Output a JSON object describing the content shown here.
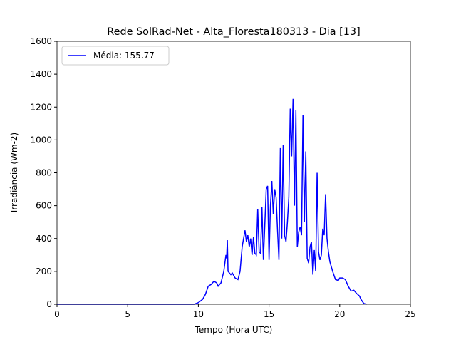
{
  "chart_data": {
    "type": "line",
    "title": "Rede SolRad-Net - Alta_Floresta180313 - Dia [13]",
    "xlabel": "Tempo (Hora UTC)",
    "ylabel": "Irradiância (Wm-2)",
    "xlim": [
      0,
      25
    ],
    "xticks": [
      0,
      5,
      10,
      15,
      20,
      25
    ],
    "ylim": [
      0,
      1600
    ],
    "yticks": [
      0,
      200,
      400,
      600,
      800,
      1000,
      1200,
      1400,
      1600
    ],
    "legend": "upper left",
    "x": [
      0,
      9.7,
      10,
      10.3,
      10.5,
      10.7,
      10.9,
      11.1,
      11.3,
      11.4,
      11.6,
      11.8,
      11.95,
      12.0,
      12.05,
      12.1,
      12.3,
      12.4,
      12.6,
      12.8,
      12.95,
      13.1,
      13.3,
      13.4,
      13.5,
      13.6,
      13.7,
      13.8,
      13.9,
      14.0,
      14.1,
      14.2,
      14.3,
      14.4,
      14.5,
      14.6,
      14.7,
      14.8,
      14.9,
      15.0,
      15.1,
      15.2,
      15.3,
      15.4,
      15.5,
      15.6,
      15.7,
      15.8,
      15.9,
      16.0,
      16.1,
      16.2,
      16.3,
      16.4,
      16.5,
      16.6,
      16.7,
      16.8,
      16.9,
      17.0,
      17.1,
      17.2,
      17.3,
      17.4,
      17.5,
      17.6,
      17.7,
      17.8,
      17.9,
      18.0,
      18.1,
      18.2,
      18.3,
      18.4,
      18.5,
      18.6,
      18.7,
      18.8,
      18.9,
      19.0,
      19.1,
      19.2,
      19.3,
      19.5,
      19.7,
      19.9,
      20.0,
      20.2,
      20.4,
      20.6,
      20.8,
      21.0,
      21.2,
      21.4,
      21.5,
      21.7,
      21.9
    ],
    "series": [
      {
        "name": "Média: 155.77",
        "color": "#0000ff",
        "values": [
          0,
          0,
          10,
          30,
          60,
          110,
          120,
          140,
          130,
          110,
          130,
          200,
          300,
          280,
          390,
          200,
          180,
          190,
          160,
          150,
          200,
          350,
          450,
          380,
          420,
          350,
          400,
          300,
          410,
          310,
          300,
          580,
          320,
          310,
          590,
          270,
          480,
          700,
          720,
          270,
          600,
          750,
          550,
          700,
          650,
          450,
          270,
          950,
          400,
          970,
          420,
          380,
          500,
          650,
          1190,
          900,
          1250,
          600,
          1180,
          350,
          440,
          470,
          420,
          1150,
          500,
          930,
          280,
          250,
          350,
          380,
          180,
          330,
          200,
          800,
          320,
          270,
          300,
          460,
          420,
          670,
          400,
          320,
          260,
          200,
          150,
          145,
          160,
          160,
          150,
          110,
          80,
          85,
          65,
          50,
          30,
          5,
          0
        ]
      }
    ]
  }
}
